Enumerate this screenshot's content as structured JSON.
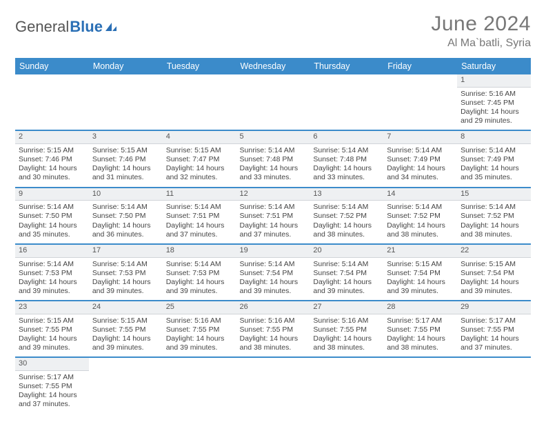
{
  "logo": {
    "text1": "General",
    "text2": "Blue"
  },
  "title": "June 2024",
  "location": "Al Ma`batli, Syria",
  "colors": {
    "header_bg": "#3b8bca",
    "header_text": "#ffffff",
    "daynum_bg": "#eef0f2",
    "border": "#3b8bca",
    "body_text": "#444444",
    "title_text": "#777777"
  },
  "typography": {
    "title_fontsize": 30,
    "location_fontsize": 16,
    "header_fontsize": 12.5,
    "cell_fontsize": 10.5
  },
  "weekdays": [
    "Sunday",
    "Monday",
    "Tuesday",
    "Wednesday",
    "Thursday",
    "Friday",
    "Saturday"
  ],
  "weeks": [
    [
      null,
      null,
      null,
      null,
      null,
      null,
      {
        "n": "1",
        "sr": "Sunrise: 5:16 AM",
        "ss": "Sunset: 7:45 PM",
        "dl": "Daylight: 14 hours and 29 minutes."
      }
    ],
    [
      {
        "n": "2",
        "sr": "Sunrise: 5:15 AM",
        "ss": "Sunset: 7:46 PM",
        "dl": "Daylight: 14 hours and 30 minutes."
      },
      {
        "n": "3",
        "sr": "Sunrise: 5:15 AM",
        "ss": "Sunset: 7:46 PM",
        "dl": "Daylight: 14 hours and 31 minutes."
      },
      {
        "n": "4",
        "sr": "Sunrise: 5:15 AM",
        "ss": "Sunset: 7:47 PM",
        "dl": "Daylight: 14 hours and 32 minutes."
      },
      {
        "n": "5",
        "sr": "Sunrise: 5:14 AM",
        "ss": "Sunset: 7:48 PM",
        "dl": "Daylight: 14 hours and 33 minutes."
      },
      {
        "n": "6",
        "sr": "Sunrise: 5:14 AM",
        "ss": "Sunset: 7:48 PM",
        "dl": "Daylight: 14 hours and 33 minutes."
      },
      {
        "n": "7",
        "sr": "Sunrise: 5:14 AM",
        "ss": "Sunset: 7:49 PM",
        "dl": "Daylight: 14 hours and 34 minutes."
      },
      {
        "n": "8",
        "sr": "Sunrise: 5:14 AM",
        "ss": "Sunset: 7:49 PM",
        "dl": "Daylight: 14 hours and 35 minutes."
      }
    ],
    [
      {
        "n": "9",
        "sr": "Sunrise: 5:14 AM",
        "ss": "Sunset: 7:50 PM",
        "dl": "Daylight: 14 hours and 35 minutes."
      },
      {
        "n": "10",
        "sr": "Sunrise: 5:14 AM",
        "ss": "Sunset: 7:50 PM",
        "dl": "Daylight: 14 hours and 36 minutes."
      },
      {
        "n": "11",
        "sr": "Sunrise: 5:14 AM",
        "ss": "Sunset: 7:51 PM",
        "dl": "Daylight: 14 hours and 37 minutes."
      },
      {
        "n": "12",
        "sr": "Sunrise: 5:14 AM",
        "ss": "Sunset: 7:51 PM",
        "dl": "Daylight: 14 hours and 37 minutes."
      },
      {
        "n": "13",
        "sr": "Sunrise: 5:14 AM",
        "ss": "Sunset: 7:52 PM",
        "dl": "Daylight: 14 hours and 38 minutes."
      },
      {
        "n": "14",
        "sr": "Sunrise: 5:14 AM",
        "ss": "Sunset: 7:52 PM",
        "dl": "Daylight: 14 hours and 38 minutes."
      },
      {
        "n": "15",
        "sr": "Sunrise: 5:14 AM",
        "ss": "Sunset: 7:52 PM",
        "dl": "Daylight: 14 hours and 38 minutes."
      }
    ],
    [
      {
        "n": "16",
        "sr": "Sunrise: 5:14 AM",
        "ss": "Sunset: 7:53 PM",
        "dl": "Daylight: 14 hours and 39 minutes."
      },
      {
        "n": "17",
        "sr": "Sunrise: 5:14 AM",
        "ss": "Sunset: 7:53 PM",
        "dl": "Daylight: 14 hours and 39 minutes."
      },
      {
        "n": "18",
        "sr": "Sunrise: 5:14 AM",
        "ss": "Sunset: 7:53 PM",
        "dl": "Daylight: 14 hours and 39 minutes."
      },
      {
        "n": "19",
        "sr": "Sunrise: 5:14 AM",
        "ss": "Sunset: 7:54 PM",
        "dl": "Daylight: 14 hours and 39 minutes."
      },
      {
        "n": "20",
        "sr": "Sunrise: 5:14 AM",
        "ss": "Sunset: 7:54 PM",
        "dl": "Daylight: 14 hours and 39 minutes."
      },
      {
        "n": "21",
        "sr": "Sunrise: 5:15 AM",
        "ss": "Sunset: 7:54 PM",
        "dl": "Daylight: 14 hours and 39 minutes."
      },
      {
        "n": "22",
        "sr": "Sunrise: 5:15 AM",
        "ss": "Sunset: 7:54 PM",
        "dl": "Daylight: 14 hours and 39 minutes."
      }
    ],
    [
      {
        "n": "23",
        "sr": "Sunrise: 5:15 AM",
        "ss": "Sunset: 7:55 PM",
        "dl": "Daylight: 14 hours and 39 minutes."
      },
      {
        "n": "24",
        "sr": "Sunrise: 5:15 AM",
        "ss": "Sunset: 7:55 PM",
        "dl": "Daylight: 14 hours and 39 minutes."
      },
      {
        "n": "25",
        "sr": "Sunrise: 5:16 AM",
        "ss": "Sunset: 7:55 PM",
        "dl": "Daylight: 14 hours and 39 minutes."
      },
      {
        "n": "26",
        "sr": "Sunrise: 5:16 AM",
        "ss": "Sunset: 7:55 PM",
        "dl": "Daylight: 14 hours and 38 minutes."
      },
      {
        "n": "27",
        "sr": "Sunrise: 5:16 AM",
        "ss": "Sunset: 7:55 PM",
        "dl": "Daylight: 14 hours and 38 minutes."
      },
      {
        "n": "28",
        "sr": "Sunrise: 5:17 AM",
        "ss": "Sunset: 7:55 PM",
        "dl": "Daylight: 14 hours and 38 minutes."
      },
      {
        "n": "29",
        "sr": "Sunrise: 5:17 AM",
        "ss": "Sunset: 7:55 PM",
        "dl": "Daylight: 14 hours and 37 minutes."
      }
    ],
    [
      {
        "n": "30",
        "sr": "Sunrise: 5:17 AM",
        "ss": "Sunset: 7:55 PM",
        "dl": "Daylight: 14 hours and 37 minutes."
      },
      null,
      null,
      null,
      null,
      null,
      null
    ]
  ]
}
